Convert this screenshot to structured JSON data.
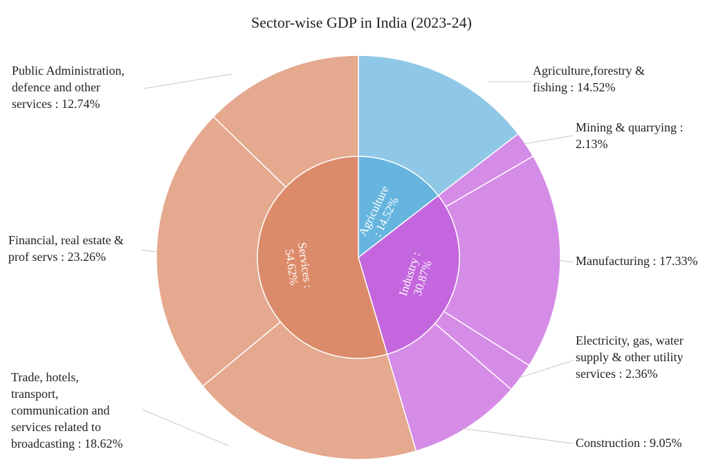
{
  "chart_data": {
    "type": "sunburst",
    "title": "Sector-wise GDP in India (2023-24)",
    "inner": [
      {
        "name": "Agriculture",
        "label": "Agriculture : 14.52%",
        "value": 14.52,
        "color": "#66b5df"
      },
      {
        "name": "Industry",
        "label": "Industry : 30.87%",
        "value": 30.87,
        "color": "#c466de"
      },
      {
        "name": "Services",
        "label": "Services : 54.62%",
        "value": 54.62,
        "color": "#dc8b6a"
      }
    ],
    "outer": [
      {
        "name": "Agriculture,forestry & fishing",
        "parent": "Agriculture",
        "value": 14.52,
        "color": "#8fc8e6",
        "label_lines": [
          "Agriculture,forestry &",
          "fishing : 14.52%"
        ]
      },
      {
        "name": "Mining & quarrying",
        "parent": "Industry",
        "value": 2.13,
        "color": "#d58ce7",
        "label_lines": [
          "Mining & quarrying :",
          "2.13%"
        ]
      },
      {
        "name": "Manufacturing",
        "parent": "Industry",
        "value": 17.33,
        "color": "#d58ce7",
        "label_lines": [
          "Manufacturing : 17.33%"
        ]
      },
      {
        "name": "Electricity, gas, water supply & other utility services",
        "parent": "Industry",
        "value": 2.36,
        "color": "#d58ce7",
        "label_lines": [
          "Electricity, gas, water",
          "supply & other utility",
          "services : 2.36%"
        ]
      },
      {
        "name": "Construction",
        "parent": "Industry",
        "value": 9.05,
        "color": "#d58ce7",
        "label_lines": [
          "Construction : 9.05%"
        ]
      },
      {
        "name": "Trade, hotels, transport, communication and services related to broadcasting",
        "parent": "Services",
        "value": 18.62,
        "color": "#e4a98e",
        "label_lines": [
          "Trade, hotels,",
          "transport,",
          "communication and",
          "services related to",
          "broadcasting : 18.62%"
        ]
      },
      {
        "name": "Financial, real estate & prof servs",
        "parent": "Services",
        "value": 23.26,
        "color": "#e4a98e",
        "label_lines": [
          "Financial, real estate &",
          "prof servs : 23.26%"
        ]
      },
      {
        "name": "Public Administration, defence and other services",
        "parent": "Services",
        "value": 12.74,
        "color": "#e4a98e",
        "label_lines": [
          "Public Administration,",
          "defence and other",
          "services : 12.74%"
        ]
      }
    ]
  }
}
